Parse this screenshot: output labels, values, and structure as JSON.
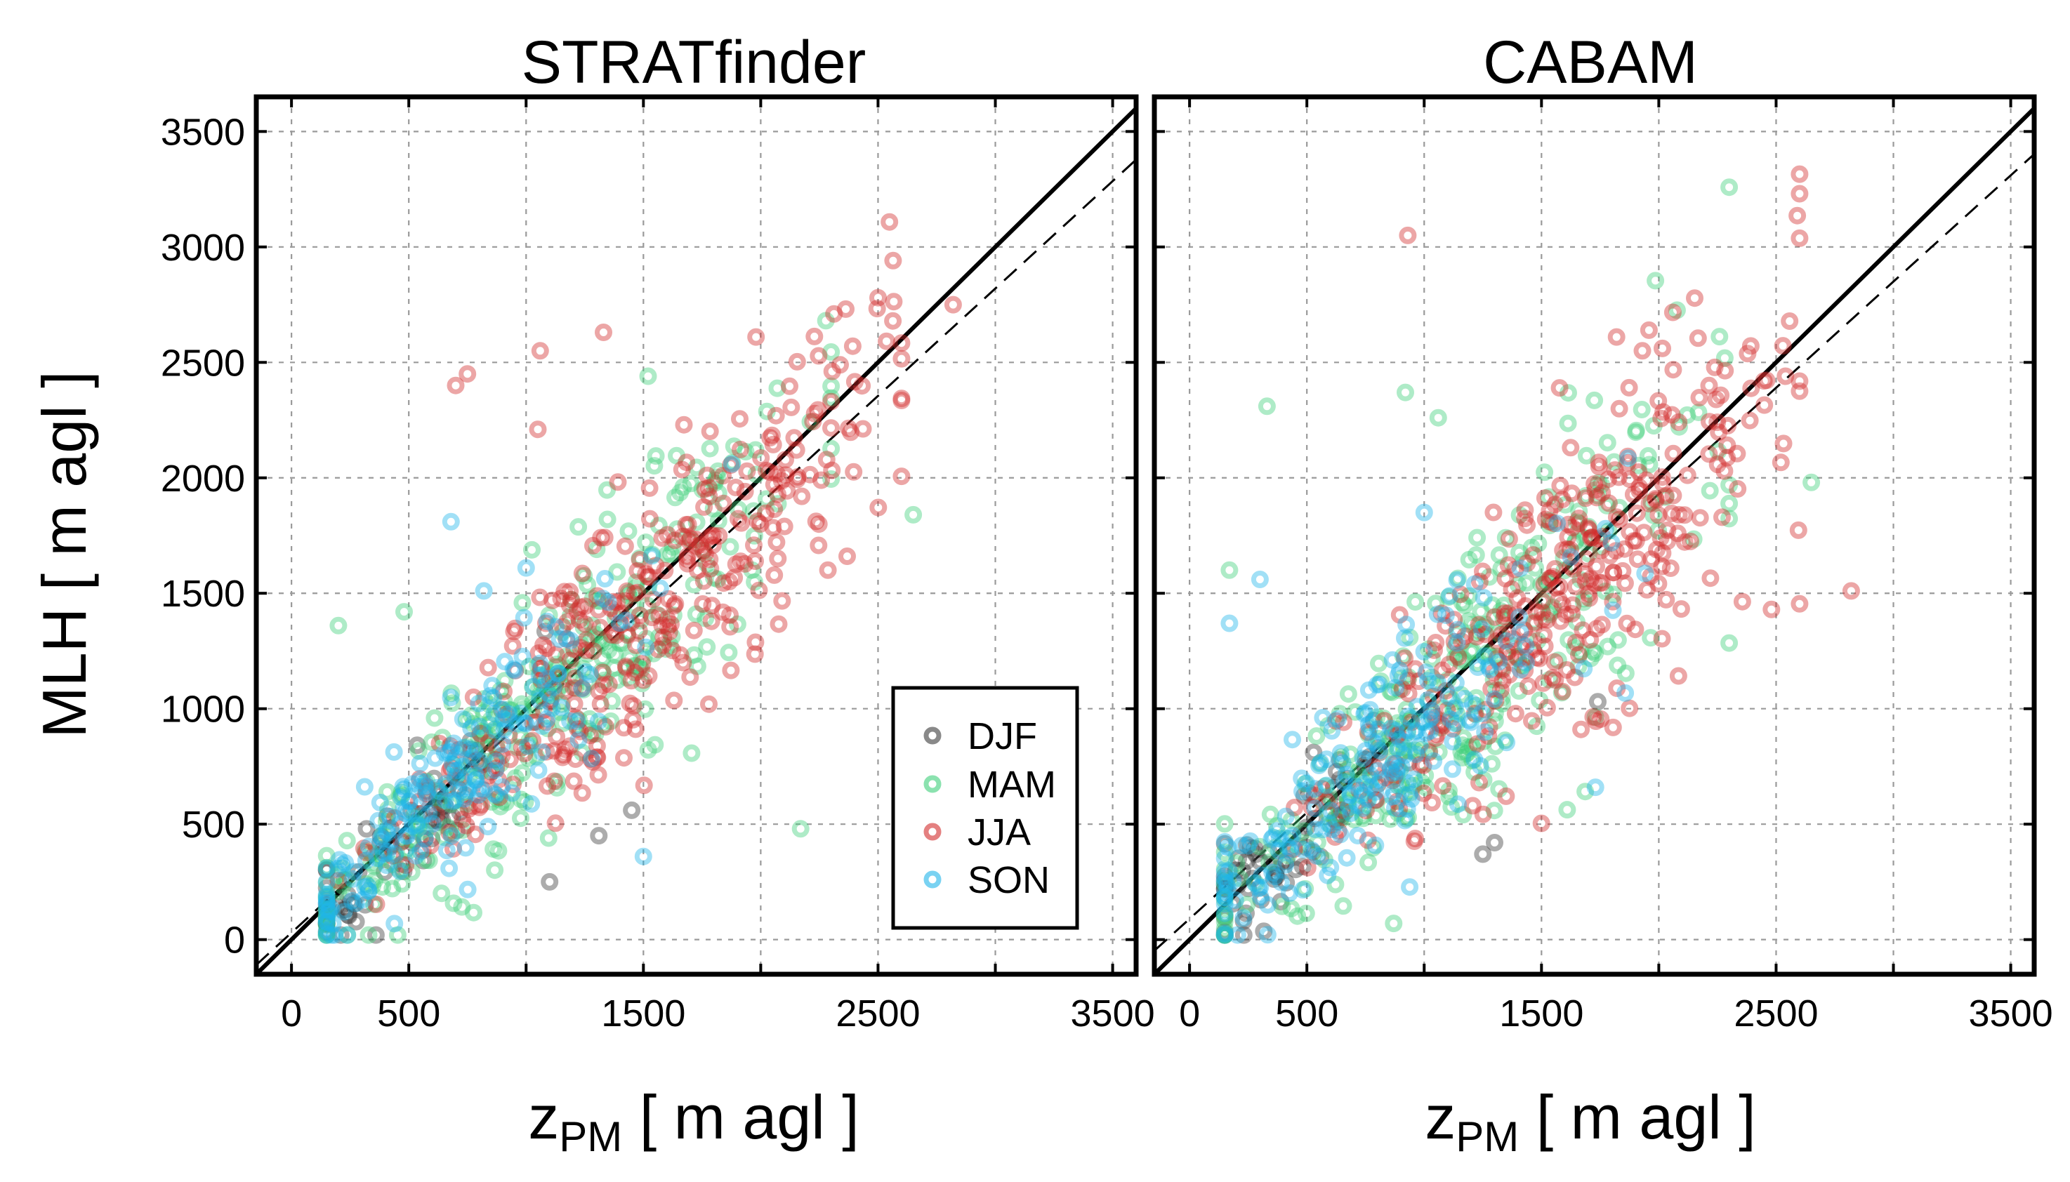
{
  "season_colors": {
    "DJF": "#3a3a3a",
    "MAM": "#3dcf7a",
    "JJA": "#d22c2c",
    "SON": "#1fb4ea"
  },
  "chart_data": [
    {
      "type": "scatter",
      "title": "STRATfinder",
      "xlabel": "z",
      "xlabel_sub": "PM",
      "xlabel_unit": "[ m agl ]",
      "ylabel": "MLH [ m agl ]",
      "xlim": [
        -150,
        3600
      ],
      "ylim": [
        -150,
        3650
      ],
      "xticks": [
        0,
        500,
        1500,
        2500,
        3500
      ],
      "yticks": [
        0,
        500,
        1000,
        1500,
        2000,
        2500,
        3000,
        3500
      ],
      "grid_x": [
        0,
        500,
        1000,
        1500,
        2000,
        2500,
        3000,
        3500
      ],
      "grid_y": [
        0,
        500,
        1000,
        1500,
        2000,
        2500,
        3000,
        3500
      ],
      "reference_lines": [
        {
          "name": "1:1 line",
          "style": "solid",
          "slope": 1.0,
          "intercept": 0
        },
        {
          "name": "regression fit",
          "style": "dashed",
          "slope": 0.93,
          "intercept": 30
        }
      ],
      "legend": {
        "position": "bottom-right",
        "entries": [
          "DJF",
          "MAM",
          "JJA",
          "SON"
        ]
      },
      "series": [
        {
          "name": "DJF",
          "seed": 11,
          "n": 70,
          "x_center": 480,
          "x_spread": 260,
          "x_min": 150,
          "x_max": 1300,
          "slope": 0.95,
          "noise": 150,
          "extra": [
            [
              210,
              20
            ],
            [
              360,
              20
            ],
            [
              1310,
              450
            ],
            [
              1100,
              250
            ],
            [
              1450,
              560
            ]
          ]
        },
        {
          "name": "MAM",
          "seed": 23,
          "n": 300,
          "x_center": 1050,
          "x_spread": 560,
          "x_min": 150,
          "x_max": 2300,
          "slope": 0.95,
          "noise": 230,
          "extra": [
            [
              2650,
              1840
            ],
            [
              2170,
              480
            ],
            [
              1520,
              2440
            ],
            [
              200,
              1360
            ],
            [
              480,
              1420
            ]
          ]
        },
        {
          "name": "JJA",
          "seed": 37,
          "n": 330,
          "x_center": 1500,
          "x_spread": 500,
          "x_min": 200,
          "x_max": 2600,
          "slope": 0.96,
          "noise": 230,
          "extra": [
            [
              750,
              2450
            ],
            [
              700,
              2400
            ],
            [
              1060,
              2550
            ],
            [
              1330,
              2630
            ],
            [
              2500,
              2780
            ],
            [
              2820,
              2750
            ],
            [
              1050,
              2210
            ],
            [
              1980,
              2610
            ]
          ]
        },
        {
          "name": "SON",
          "seed": 53,
          "n": 190,
          "x_center": 700,
          "x_spread": 430,
          "x_min": 150,
          "x_max": 1900,
          "slope": 0.97,
          "noise": 200,
          "extra": [
            [
              680,
              1810
            ],
            [
              1500,
              360
            ],
            [
              1000,
              1610
            ],
            [
              820,
              1510
            ]
          ]
        }
      ]
    },
    {
      "type": "scatter",
      "title": "CABAM",
      "xlabel": "z",
      "xlabel_sub": "PM",
      "xlabel_unit": "[ m agl ]",
      "ylabel": "",
      "xlim": [
        -150,
        3600
      ],
      "ylim": [
        -150,
        3650
      ],
      "xticks": [
        0,
        500,
        1500,
        2500,
        3500
      ],
      "yticks": [
        0,
        500,
        1000,
        1500,
        2000,
        2500,
        3000,
        3500
      ],
      "grid_x": [
        0,
        500,
        1000,
        1500,
        2000,
        2500,
        3000,
        3500
      ],
      "grid_y": [
        0,
        500,
        1000,
        1500,
        2000,
        2500,
        3000,
        3500
      ],
      "reference_lines": [
        {
          "name": "1:1 line",
          "style": "solid",
          "slope": 1.0,
          "intercept": 0
        },
        {
          "name": "regression fit",
          "style": "dashed",
          "slope": 0.92,
          "intercept": 90
        }
      ],
      "legend": null,
      "series": [
        {
          "name": "DJF",
          "seed": 71,
          "n": 70,
          "x_center": 450,
          "x_spread": 260,
          "x_min": 150,
          "x_max": 1400,
          "slope": 0.9,
          "noise": 180,
          "extra": [
            [
              1250,
              370
            ],
            [
              1300,
              420
            ],
            [
              1740,
              1030
            ],
            [
              230,
              80
            ]
          ]
        },
        {
          "name": "MAM",
          "seed": 83,
          "n": 300,
          "x_center": 1150,
          "x_spread": 560,
          "x_min": 150,
          "x_max": 2300,
          "slope": 0.95,
          "noise": 280,
          "extra": [
            [
              330,
              2310
            ],
            [
              920,
              2370
            ],
            [
              1060,
              2260
            ],
            [
              2650,
              1980
            ],
            [
              870,
              70
            ],
            [
              170,
              1600
            ]
          ]
        },
        {
          "name": "JJA",
          "seed": 97,
          "n": 330,
          "x_center": 1550,
          "x_spread": 520,
          "x_min": 200,
          "x_max": 2600,
          "slope": 0.95,
          "noise": 260,
          "extra": [
            [
              930,
              3050
            ],
            [
              1820,
              2610
            ],
            [
              1930,
              2550
            ],
            [
              2820,
              1510
            ],
            [
              2480,
              1430
            ],
            [
              2540,
              2440
            ]
          ]
        },
        {
          "name": "SON",
          "seed": 109,
          "n": 200,
          "x_center": 800,
          "x_spread": 460,
          "x_min": 150,
          "x_max": 2000,
          "slope": 0.97,
          "noise": 240,
          "extra": [
            [
              1000,
              1850
            ],
            [
              300,
              1560
            ],
            [
              170,
              1370
            ],
            [
              1730,
              660
            ],
            [
              1280,
              1170
            ]
          ]
        }
      ]
    }
  ]
}
